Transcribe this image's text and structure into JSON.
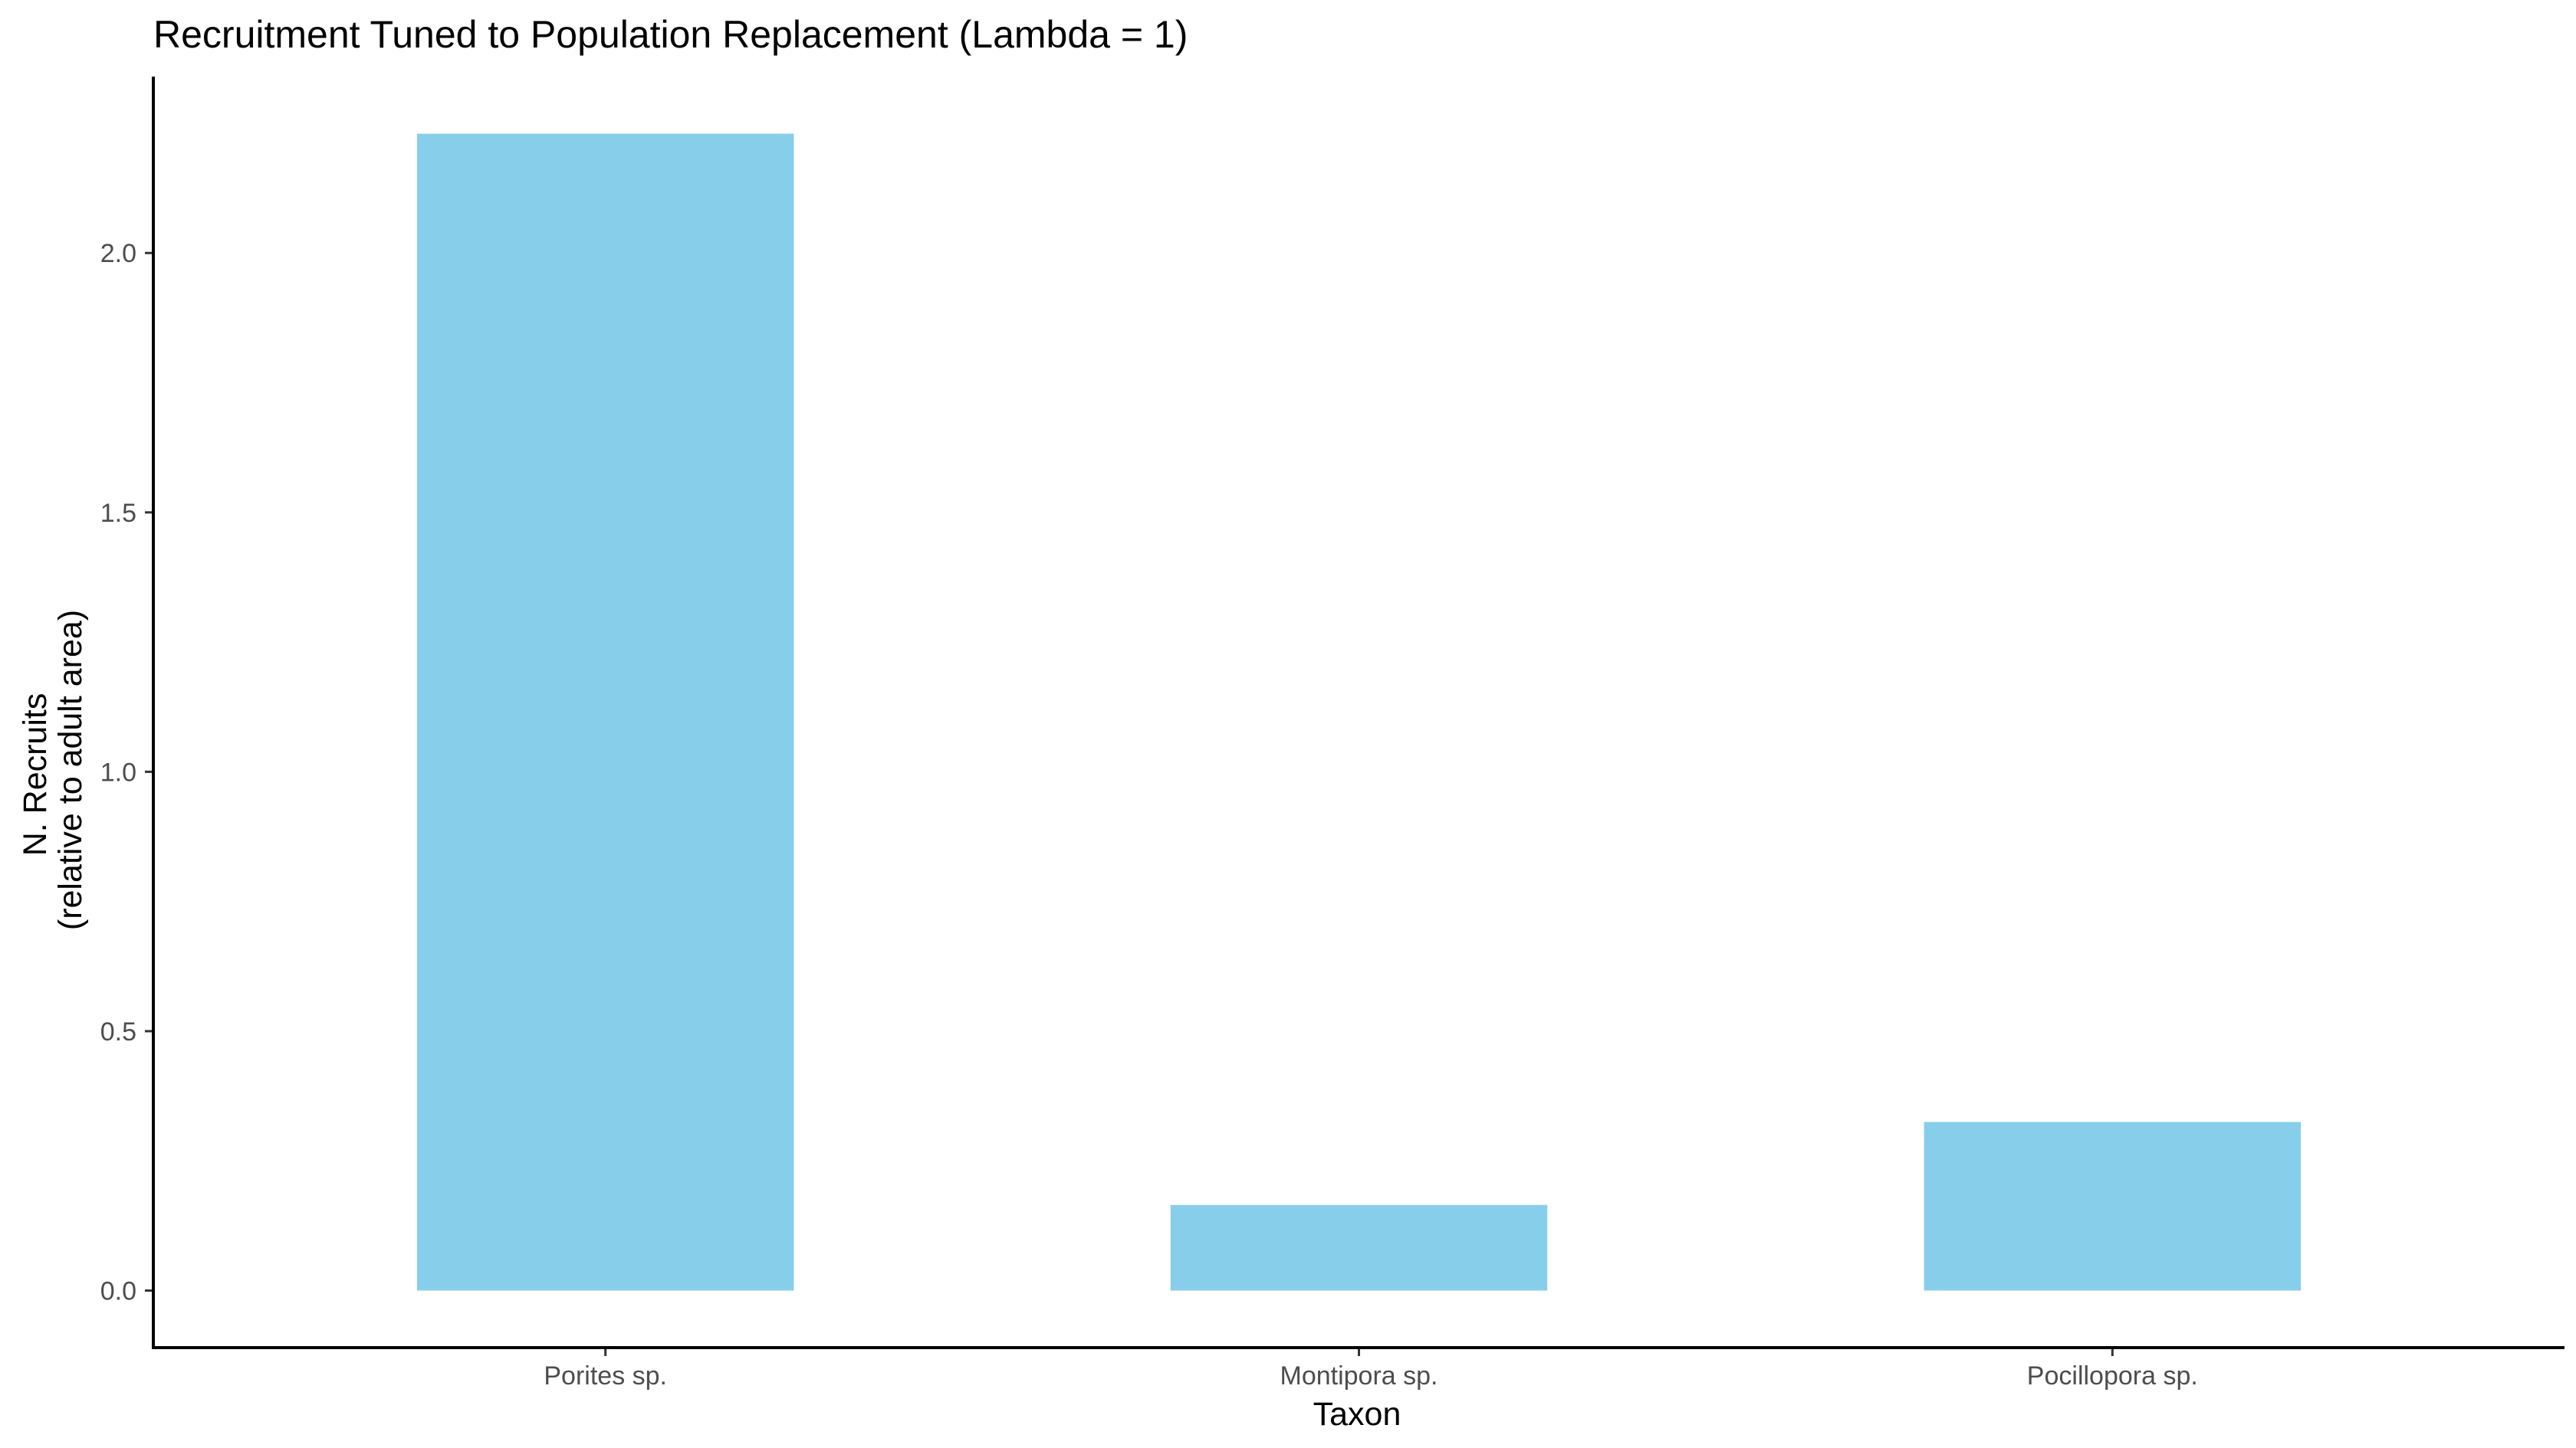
{
  "chart_data": {
    "type": "bar",
    "title": "Recruitment Tuned to Population Replacement (Lambda = 1)",
    "xlabel": "Taxon",
    "ylabel_lines": [
      "N. Recruits",
      "(relative to adult area)"
    ],
    "categories": [
      "Porites sp.",
      "Montipora sp.",
      "Pocillopora sp."
    ],
    "values": [
      2.23,
      0.165,
      0.325
    ],
    "yticks": [
      0.0,
      0.5,
      1.0,
      1.5,
      2.0
    ],
    "ytick_labels": [
      "0.0",
      "0.5",
      "1.0",
      "1.5",
      "2.0"
    ],
    "ylim": [
      -0.11,
      2.34
    ],
    "bar_color": "#87ceeb",
    "grid": false,
    "legend": "none"
  }
}
